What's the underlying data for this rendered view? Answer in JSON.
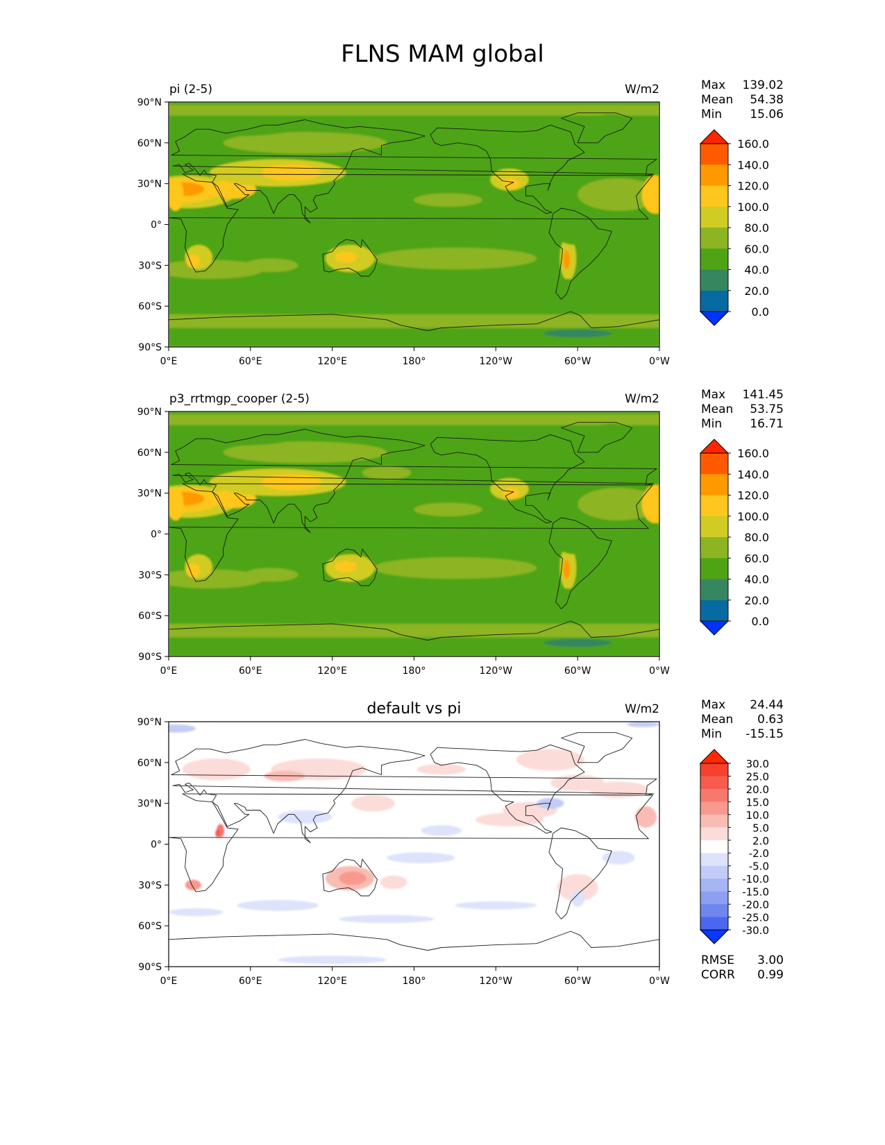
{
  "figure_title": "FLNS MAM global",
  "chart_data": [
    {
      "type": "heatmap",
      "title_left": "pi (2-5)",
      "title_center": "",
      "units": "W/m2",
      "stats": [
        {
          "label": "Max",
          "value": "139.02"
        },
        {
          "label": "Mean",
          "value": "54.38"
        },
        {
          "label": "Min",
          "value": "15.06"
        }
      ],
      "x_ticks": [
        "0°E",
        "60°E",
        "120°E",
        "180°",
        "120°W",
        "60°W",
        "0°W"
      ],
      "y_ticks": [
        "90°N",
        "60°N",
        "30°N",
        "0°",
        "30°S",
        "60°S",
        "90°S"
      ],
      "colorbar": {
        "levels": [
          "160.0",
          "140.0",
          "120.0",
          "100.0",
          "80.0",
          "60.0",
          "40.0",
          "20.0",
          "0.0"
        ],
        "colors": [
          "#ff2600",
          "#ff5a00",
          "#ff9900",
          "#ffc61e",
          "#d1cc23",
          "#8db422",
          "#4ea414",
          "#36875f",
          "#076aa1",
          "#0033ff"
        ]
      },
      "xlim": [
        0,
        360
      ],
      "ylim": [
        -90,
        90
      ]
    },
    {
      "type": "heatmap",
      "title_left": "p3_rrtmgp_cooper (2-5)",
      "title_center": "",
      "units": "W/m2",
      "stats": [
        {
          "label": "Max",
          "value": "141.45"
        },
        {
          "label": "Mean",
          "value": "53.75"
        },
        {
          "label": "Min",
          "value": "16.71"
        }
      ],
      "x_ticks": [
        "0°E",
        "60°E",
        "120°E",
        "180°",
        "120°W",
        "60°W",
        "0°W"
      ],
      "y_ticks": [
        "90°N",
        "60°N",
        "30°N",
        "0°",
        "30°S",
        "60°S",
        "90°S"
      ],
      "colorbar": {
        "levels": [
          "160.0",
          "140.0",
          "120.0",
          "100.0",
          "80.0",
          "60.0",
          "40.0",
          "20.0",
          "0.0"
        ],
        "colors": [
          "#ff2600",
          "#ff5a00",
          "#ff9900",
          "#ffc61e",
          "#d1cc23",
          "#8db422",
          "#4ea414",
          "#36875f",
          "#076aa1",
          "#0033ff"
        ]
      },
      "xlim": [
        0,
        360
      ],
      "ylim": [
        -90,
        90
      ]
    },
    {
      "type": "heatmap",
      "title_left": "",
      "title_center": "default vs pi",
      "units": "W/m2",
      "stats": [
        {
          "label": "Max",
          "value": "24.44"
        },
        {
          "label": "Mean",
          "value": "0.63"
        },
        {
          "label": "Min",
          "value": "-15.15"
        }
      ],
      "x_ticks": [
        "0°E",
        "60°E",
        "120°E",
        "180°",
        "120°W",
        "60°W",
        "0°W"
      ],
      "y_ticks": [
        "90°N",
        "60°N",
        "30°N",
        "0°",
        "30°S",
        "60°S",
        "90°S"
      ],
      "colorbar": {
        "levels": [
          "30.0",
          "25.0",
          "20.0",
          "15.0",
          "10.0",
          "5.0",
          "2.0",
          "-2.0",
          "-5.0",
          "-10.0",
          "-15.0",
          "-20.0",
          "-25.0",
          "-30.0"
        ],
        "colors": [
          "#ff2a00",
          "#f5412e",
          "#f65b4e",
          "#f7796d",
          "#f8998f",
          "#f9bcb4",
          "#fbdcd8",
          "#ffffff",
          "#dde3fb",
          "#c2ccf7",
          "#a7b5f4",
          "#8c9ff0",
          "#6e86ee",
          "#4b66f0",
          "#0a37ff"
        ]
      },
      "metrics": [
        {
          "label": "RMSE",
          "value": "3.00"
        },
        {
          "label": "CORR",
          "value": "0.99"
        }
      ],
      "xlim": [
        0,
        360
      ],
      "ylim": [
        -90,
        90
      ]
    }
  ]
}
